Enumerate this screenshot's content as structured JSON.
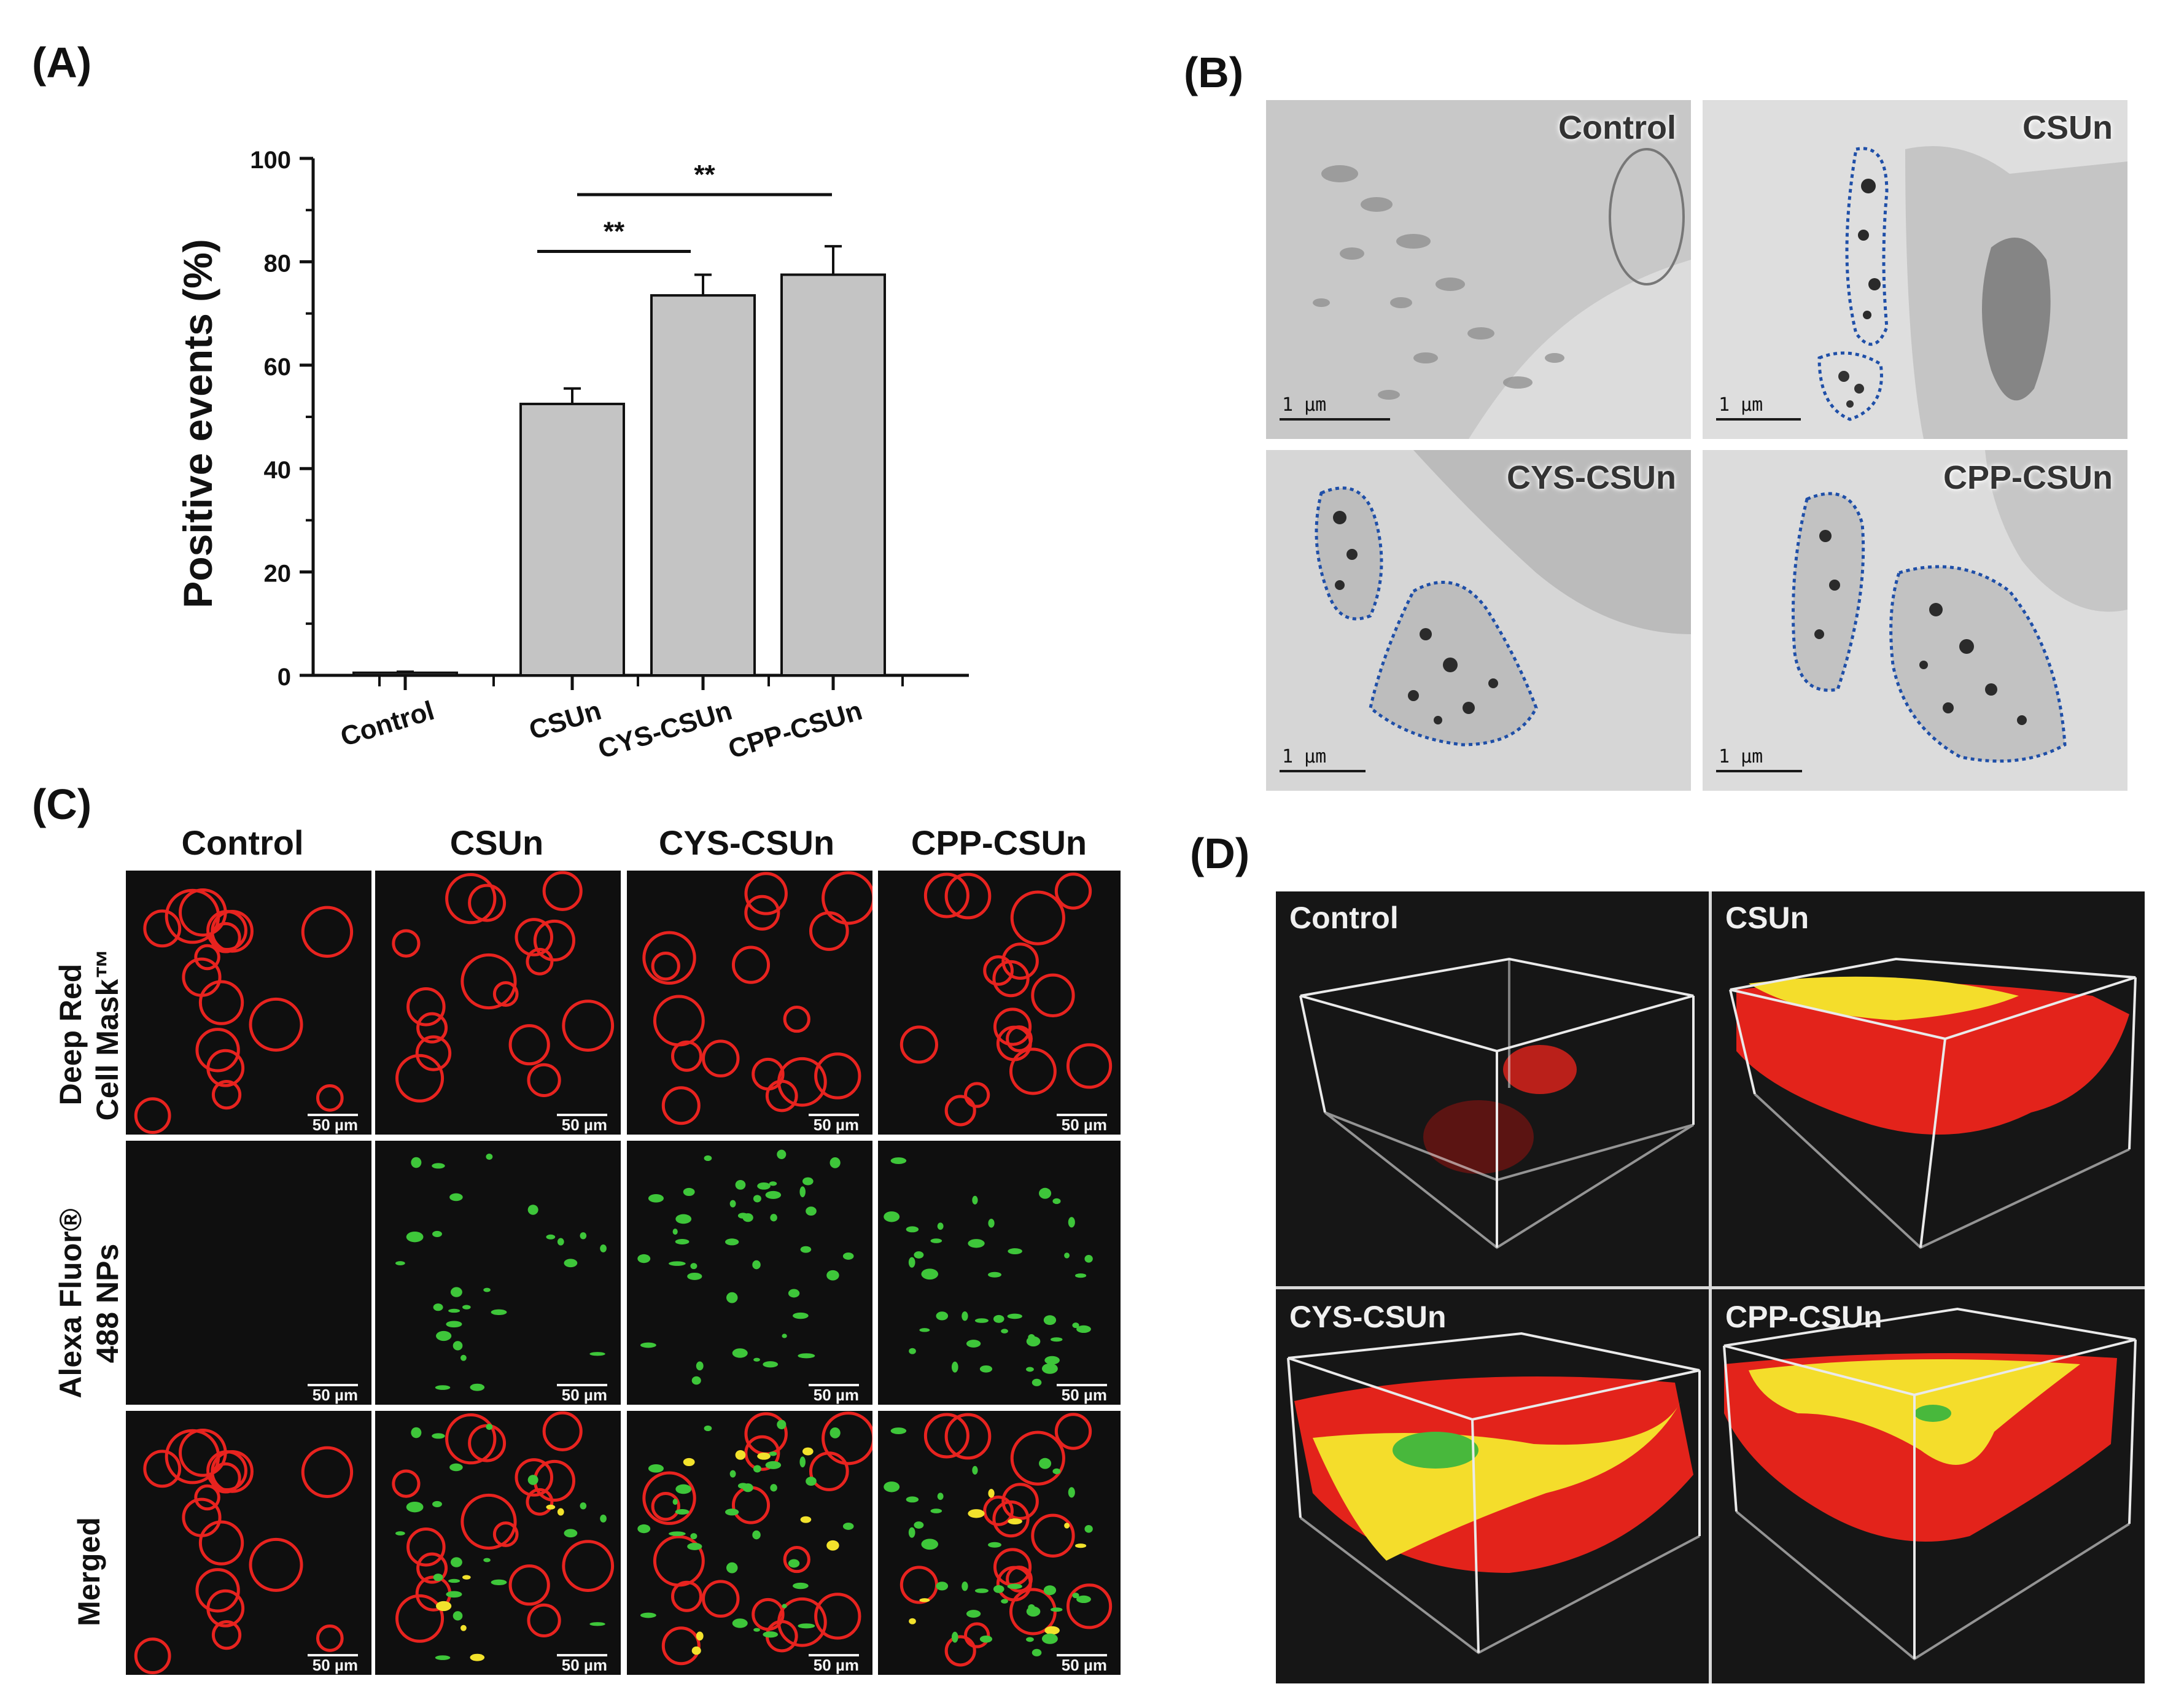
{
  "panels": {
    "A": "(A)",
    "B": "(B)",
    "C": "(C)",
    "D": "(D)"
  },
  "chart_data": {
    "type": "bar",
    "categories": [
      "Control",
      "CSUn",
      "CYS-CSUn",
      "CPP-CSUn"
    ],
    "values": [
      0.5,
      52.5,
      73.5,
      77.5
    ],
    "errors": [
      0.2,
      3,
      4,
      5.5
    ],
    "ylabel": "Positive events (%)",
    "xlabel": "",
    "ylim": [
      0,
      100
    ],
    "yticks": [
      0,
      20,
      40,
      60,
      80,
      100
    ],
    "significance": [
      {
        "from": "CSUn",
        "to": "CYS-CSUn",
        "label": "**"
      },
      {
        "from": "CSUn",
        "to": "CPP-CSUn",
        "label": "**"
      }
    ],
    "bar_color": "#c4c4c4",
    "grid": false
  },
  "tem": {
    "scale": "1 µm",
    "items": [
      {
        "label": "Control"
      },
      {
        "label": "CSUn"
      },
      {
        "label": "CYS-CSUn"
      },
      {
        "label": "CPP-CSUn"
      }
    ]
  },
  "confocal": {
    "columns": [
      "Control",
      "CSUn",
      "CYS-CSUn",
      "CPP-CSUn"
    ],
    "rows": [
      {
        "line1": "Deep Red",
        "line2": "Cell Mask™"
      },
      {
        "line1": "Alexa Fluor®",
        "line2": "488 NPs"
      },
      {
        "line1": "Merged",
        "line2": ""
      }
    ],
    "scale": "50 µm",
    "colors": {
      "membrane": "#e8231f",
      "nanoparticle": "#3ec63a",
      "overlap": "#f2e22c"
    }
  },
  "three_d": {
    "items": [
      {
        "label": "Control"
      },
      {
        "label": "CSUn"
      },
      {
        "label": "CYS-CSUn"
      },
      {
        "label": "CPP-CSUn"
      }
    ]
  }
}
